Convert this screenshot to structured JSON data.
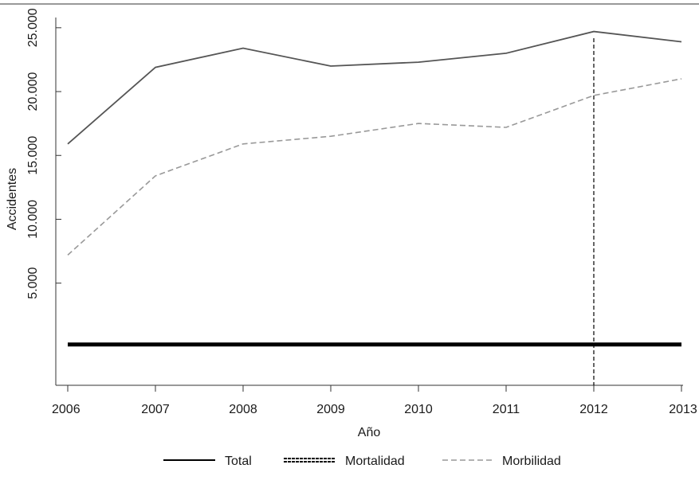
{
  "chart_data": {
    "type": "line",
    "title": "",
    "xlabel": "Año",
    "ylabel": "Accidentes",
    "x": [
      2006,
      2007,
      2008,
      2009,
      2010,
      2011,
      2012,
      2013
    ],
    "x_tick_labels": [
      "2006",
      "2007",
      "2008",
      "2009",
      "2010",
      "2011",
      "2012",
      "2013"
    ],
    "y_ticks": [
      5000,
      10000,
      15000,
      20000,
      25000
    ],
    "y_tick_labels": [
      "5.000",
      "10.000",
      "15.000",
      "20.000",
      "25.000"
    ],
    "ylim": [
      -3000,
      25800
    ],
    "grid": false,
    "legend_position": "bottom",
    "reference_line": {
      "x": 2012,
      "style": "dashed"
    },
    "series": [
      {
        "name": "Total",
        "style": "solid",
        "color": "#555555",
        "values": [
          15900,
          21900,
          23400,
          22000,
          22300,
          23000,
          24700,
          23900
        ]
      },
      {
        "name": "Mortalidad",
        "style": "double-dashed",
        "color": "#000000",
        "values": [
          200,
          200,
          200,
          200,
          200,
          200,
          200,
          200
        ]
      },
      {
        "name": "Morbilidad",
        "style": "dashed",
        "color": "#999999",
        "values": [
          7200,
          13400,
          15900,
          16500,
          17500,
          17200,
          19700,
          21000
        ]
      }
    ]
  }
}
